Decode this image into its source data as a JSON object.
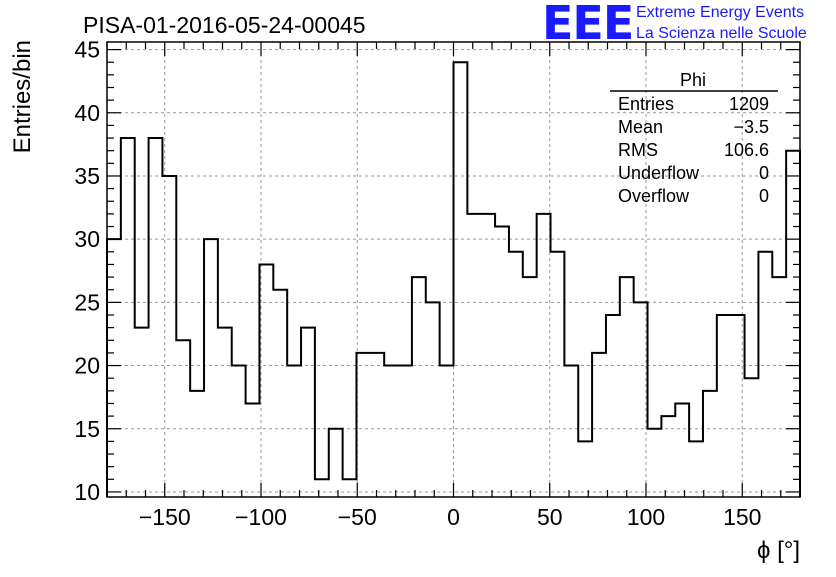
{
  "chart_data": {
    "type": "bar",
    "style": "step histogram",
    "title": "PISA-01-2016-05-24-00045",
    "xlabel": "ϕ [°]",
    "ylabel": "Entries/bin",
    "xlim": [
      -180,
      180
    ],
    "ylim": [
      9.6,
      45.6
    ],
    "xticks": [
      -150,
      -100,
      -50,
      0,
      50,
      100,
      150
    ],
    "yticks": [
      10,
      15,
      20,
      25,
      30,
      35,
      40,
      45
    ],
    "grid": true,
    "bin_width": 7.2,
    "bin_edges_start": -180,
    "values": [
      30,
      38,
      23,
      38,
      35,
      22,
      18,
      30,
      23,
      20,
      17,
      28,
      26,
      20,
      23,
      11,
      15,
      11,
      21,
      21,
      20,
      20,
      27,
      25,
      20,
      44,
      32,
      32,
      31,
      29,
      27,
      32,
      29,
      20,
      14,
      21,
      24,
      27,
      25,
      15,
      16,
      17,
      14,
      18,
      24,
      24,
      19,
      29,
      27,
      37
    ],
    "series": [
      {
        "name": "Phi"
      }
    ],
    "stats": {
      "title": "Phi",
      "rows": [
        {
          "label": "Entries",
          "value": "1209"
        },
        {
          "label": "Mean",
          "value": "−3.5"
        },
        {
          "label": "RMS",
          "value": "106.6"
        },
        {
          "label": "Underflow",
          "value": "0"
        },
        {
          "label": "Overflow",
          "value": "0"
        }
      ]
    }
  },
  "logo": {
    "mark": "EEE",
    "line1": "Extreme Energy Events",
    "line2": "La Scienza nelle Scuole",
    "color": "#1a1aff"
  }
}
